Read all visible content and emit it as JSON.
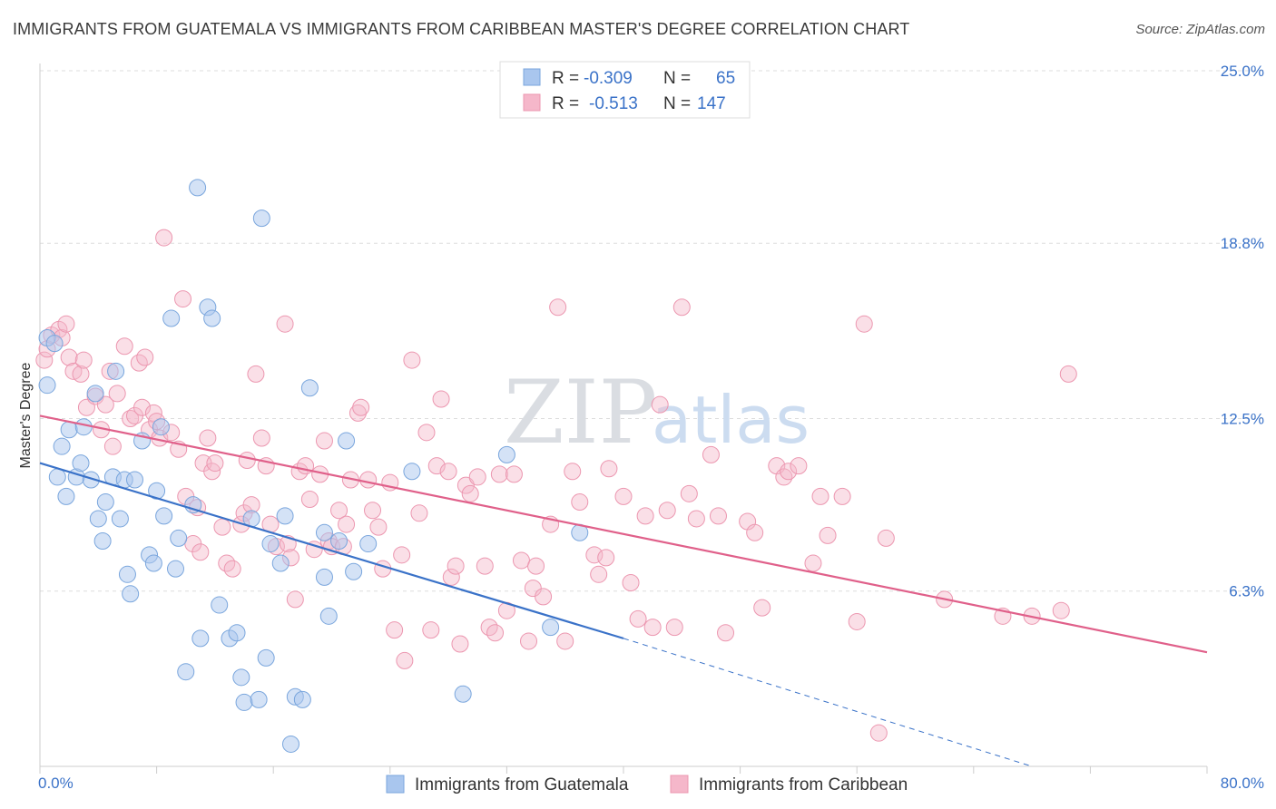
{
  "title": "IMMIGRANTS FROM GUATEMALA VS IMMIGRANTS FROM CARIBBEAN MASTER'S DEGREE CORRELATION CHART",
  "source": "Source: ZipAtlas.com",
  "watermark": {
    "zip": "ZIP",
    "atlas": "atlas"
  },
  "colors": {
    "blue_fill": "#a9c6ee",
    "blue_stroke": "#7aa6dd",
    "blue_line": "#3a72c8",
    "pink_fill": "#f5b7ca",
    "pink_stroke": "#ec97b0",
    "pink_line": "#e0608a",
    "grid": "#dddddd",
    "axis_label": "#3a72c8"
  },
  "stats": {
    "r_label": "R =",
    "n_label": "N =",
    "rows": [
      {
        "r": "-0.309",
        "n": "65"
      },
      {
        "r": "-0.513",
        "n": "147"
      }
    ]
  },
  "chart_data": {
    "type": "scatter",
    "title": "IMMIGRANTS FROM GUATEMALA VS IMMIGRANTS FROM CARIBBEAN MASTER'S DEGREE CORRELATION CHART",
    "xlabel": "",
    "ylabel": "Master's Degree",
    "xlim": [
      0,
      80
    ],
    "ylim": [
      0,
      25
    ],
    "x_tick_labels": [
      "0.0%",
      "80.0%"
    ],
    "y_ticks": [
      6.3,
      12.5,
      18.8,
      25.0
    ],
    "y_tick_labels": [
      "6.3%",
      "12.5%",
      "18.8%",
      "25.0%"
    ],
    "grid": "horizontal dashed",
    "legend_position": "bottom-center",
    "series": [
      {
        "name": "Immigrants from Guatemala",
        "color": "#a9c6ee",
        "trend": {
          "x": [
            0,
            40
          ],
          "y": [
            10.9,
            4.6
          ],
          "dashed_extension_to": [
            68,
            0
          ]
        },
        "points": [
          [
            0.5,
            15.4
          ],
          [
            0.5,
            13.7
          ],
          [
            1,
            15.2
          ],
          [
            1.5,
            11.5
          ],
          [
            1.2,
            10.4
          ],
          [
            1.8,
            9.7
          ],
          [
            2,
            12.1
          ],
          [
            2.5,
            10.4
          ],
          [
            2.8,
            10.9
          ],
          [
            3,
            12.2
          ],
          [
            3.5,
            10.3
          ],
          [
            3.8,
            13.4
          ],
          [
            4,
            8.9
          ],
          [
            4.3,
            8.1
          ],
          [
            4.5,
            9.5
          ],
          [
            5,
            10.4
          ],
          [
            5.2,
            14.2
          ],
          [
            5.5,
            8.9
          ],
          [
            5.8,
            10.3
          ],
          [
            6,
            6.9
          ],
          [
            6.2,
            6.2
          ],
          [
            6.5,
            10.3
          ],
          [
            7,
            11.7
          ],
          [
            7.5,
            7.6
          ],
          [
            7.8,
            7.3
          ],
          [
            8,
            9.9
          ],
          [
            8.3,
            12.2
          ],
          [
            8.5,
            9.0
          ],
          [
            9,
            16.1
          ],
          [
            9.3,
            7.1
          ],
          [
            9.5,
            8.2
          ],
          [
            10,
            3.4
          ],
          [
            10.5,
            9.4
          ],
          [
            10.8,
            20.8
          ],
          [
            11,
            4.6
          ],
          [
            11.5,
            16.5
          ],
          [
            11.8,
            16.1
          ],
          [
            12.3,
            5.8
          ],
          [
            13,
            4.6
          ],
          [
            13.5,
            4.8
          ],
          [
            13.8,
            3.2
          ],
          [
            14,
            2.3
          ],
          [
            14.5,
            8.9
          ],
          [
            15,
            2.4
          ],
          [
            15.5,
            3.9
          ],
          [
            15.2,
            19.7
          ],
          [
            15.8,
            8.0
          ],
          [
            16.5,
            7.3
          ],
          [
            16.8,
            9.0
          ],
          [
            17.2,
            0.8
          ],
          [
            17.5,
            2.5
          ],
          [
            18,
            2.4
          ],
          [
            18.5,
            13.6
          ],
          [
            19.5,
            8.4
          ],
          [
            19.5,
            6.8
          ],
          [
            19.8,
            5.4
          ],
          [
            20.5,
            8.1
          ],
          [
            21,
            11.7
          ],
          [
            21.5,
            7.0
          ],
          [
            22.5,
            8.0
          ],
          [
            25.5,
            10.6
          ],
          [
            29,
            2.6
          ],
          [
            32,
            11.2
          ],
          [
            35,
            5.0
          ],
          [
            37,
            8.4
          ]
        ]
      },
      {
        "name": "Immigrants from Caribbean",
        "color": "#f5b7ca",
        "trend": {
          "x": [
            0,
            80
          ],
          "y": [
            12.6,
            4.1
          ]
        },
        "points": [
          [
            0.3,
            14.6
          ],
          [
            0.5,
            15.0
          ],
          [
            0.8,
            15.5
          ],
          [
            1.3,
            15.7
          ],
          [
            1.5,
            15.4
          ],
          [
            1.8,
            15.9
          ],
          [
            2,
            14.7
          ],
          [
            2.3,
            14.2
          ],
          [
            2.8,
            14.1
          ],
          [
            3,
            14.6
          ],
          [
            3.2,
            12.9
          ],
          [
            3.8,
            13.3
          ],
          [
            4.2,
            12.1
          ],
          [
            4.5,
            13.0
          ],
          [
            4.8,
            14.2
          ],
          [
            5,
            11.5
          ],
          [
            5.3,
            13.4
          ],
          [
            5.8,
            15.1
          ],
          [
            6.2,
            12.5
          ],
          [
            6.5,
            12.6
          ],
          [
            6.8,
            14.5
          ],
          [
            7,
            12.9
          ],
          [
            7.2,
            14.7
          ],
          [
            7.5,
            12.1
          ],
          [
            7.8,
            12.7
          ],
          [
            8,
            12.4
          ],
          [
            8.2,
            11.8
          ],
          [
            8.5,
            19.0
          ],
          [
            9,
            12.0
          ],
          [
            9.5,
            11.4
          ],
          [
            9.8,
            16.8
          ],
          [
            10,
            9.7
          ],
          [
            10.5,
            8.0
          ],
          [
            10.8,
            9.3
          ],
          [
            11,
            7.7
          ],
          [
            11.2,
            10.9
          ],
          [
            11.5,
            11.8
          ],
          [
            11.8,
            10.6
          ],
          [
            12,
            10.9
          ],
          [
            12.5,
            8.6
          ],
          [
            12.8,
            7.3
          ],
          [
            13.2,
            7.1
          ],
          [
            13.8,
            8.7
          ],
          [
            14,
            9.1
          ],
          [
            14.2,
            11.0
          ],
          [
            14.5,
            9.4
          ],
          [
            14.8,
            14.1
          ],
          [
            15.2,
            11.8
          ],
          [
            15.5,
            10.8
          ],
          [
            15.8,
            8.7
          ],
          [
            16.2,
            7.9
          ],
          [
            16.8,
            15.9
          ],
          [
            17,
            8.0
          ],
          [
            17.2,
            7.5
          ],
          [
            17.5,
            6.0
          ],
          [
            17.8,
            10.6
          ],
          [
            18.2,
            10.8
          ],
          [
            18.5,
            9.6
          ],
          [
            18.8,
            7.8
          ],
          [
            19.2,
            10.5
          ],
          [
            19.5,
            11.7
          ],
          [
            19.8,
            8.1
          ],
          [
            20,
            7.9
          ],
          [
            20.5,
            9.2
          ],
          [
            20.8,
            7.9
          ],
          [
            21,
            8.7
          ],
          [
            21.3,
            10.3
          ],
          [
            21.8,
            12.7
          ],
          [
            22,
            12.9
          ],
          [
            22.5,
            10.3
          ],
          [
            22.8,
            9.2
          ],
          [
            23.2,
            8.6
          ],
          [
            23.5,
            7.1
          ],
          [
            24,
            10.2
          ],
          [
            24.3,
            4.9
          ],
          [
            24.8,
            7.6
          ],
          [
            25,
            3.8
          ],
          [
            25.5,
            14.6
          ],
          [
            26,
            9.1
          ],
          [
            26.5,
            12.0
          ],
          [
            26.8,
            4.9
          ],
          [
            27.2,
            10.8
          ],
          [
            27.5,
            13.2
          ],
          [
            28,
            10.6
          ],
          [
            28.2,
            6.8
          ],
          [
            28.5,
            7.2
          ],
          [
            28.8,
            4.4
          ],
          [
            29.2,
            10.1
          ],
          [
            29.5,
            9.8
          ],
          [
            30,
            10.4
          ],
          [
            30.5,
            7.2
          ],
          [
            30.8,
            5.0
          ],
          [
            31.2,
            4.8
          ],
          [
            31.5,
            10.5
          ],
          [
            32,
            5.6
          ],
          [
            32.5,
            10.5
          ],
          [
            33,
            7.4
          ],
          [
            33.5,
            4.5
          ],
          [
            33.8,
            6.4
          ],
          [
            34,
            7.2
          ],
          [
            34.5,
            6.1
          ],
          [
            35,
            8.7
          ],
          [
            35.5,
            16.5
          ],
          [
            36,
            4.5
          ],
          [
            36.5,
            10.6
          ],
          [
            37,
            9.5
          ],
          [
            38,
            7.6
          ],
          [
            38.3,
            6.9
          ],
          [
            38.8,
            7.5
          ],
          [
            39,
            10.7
          ],
          [
            40,
            9.7
          ],
          [
            40.5,
            6.6
          ],
          [
            41,
            5.3
          ],
          [
            41.5,
            9.0
          ],
          [
            42,
            5.0
          ],
          [
            42.5,
            13.0
          ],
          [
            43,
            9.2
          ],
          [
            43.5,
            5.0
          ],
          [
            44,
            16.5
          ],
          [
            44.5,
            9.8
          ],
          [
            45,
            8.9
          ],
          [
            46,
            11.2
          ],
          [
            46.5,
            9.0
          ],
          [
            47,
            4.8
          ],
          [
            48.5,
            8.8
          ],
          [
            49,
            8.4
          ],
          [
            49.5,
            5.7
          ],
          [
            50.5,
            10.8
          ],
          [
            51,
            10.4
          ],
          [
            51.3,
            10.6
          ],
          [
            52,
            10.8
          ],
          [
            53,
            7.3
          ],
          [
            53.5,
            9.7
          ],
          [
            54,
            8.3
          ],
          [
            55,
            9.7
          ],
          [
            56,
            5.2
          ],
          [
            56.5,
            15.9
          ],
          [
            57.5,
            1.2
          ],
          [
            58,
            8.2
          ],
          [
            62,
            6.0
          ],
          [
            66,
            5.4
          ],
          [
            68,
            5.4
          ],
          [
            70,
            5.6
          ],
          [
            70.5,
            14.1
          ]
        ]
      }
    ]
  },
  "legend": {
    "items": [
      {
        "label": "Immigrants from Guatemala"
      },
      {
        "label": "Immigrants from Caribbean"
      }
    ]
  }
}
